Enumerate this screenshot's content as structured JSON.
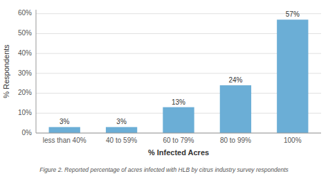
{
  "chart_data": {
    "type": "bar",
    "categories": [
      "less than 40%",
      "40 to 59%",
      "60 to 79%",
      "80 to 99%",
      "100%"
    ],
    "values": [
      3,
      3,
      13,
      24,
      57
    ],
    "value_labels": [
      "3%",
      "3%",
      "13%",
      "24%",
      "57%"
    ],
    "data_labels": true,
    "color": "#6baed6",
    "xlabel": "% Infected Acres",
    "ylabel": "% Respondents",
    "caption": "Figure 2.  Reported percentage of acres infected with HLB by citrus industry survey respondents",
    "ylim": [
      0,
      62
    ],
    "yticks": [
      {
        "value": 0,
        "label": "0%"
      },
      {
        "value": 10,
        "label": "10%"
      },
      {
        "value": 20,
        "label": "20%"
      },
      {
        "value": 30,
        "label": "30%"
      },
      {
        "value": 40,
        "label": "40%"
      },
      {
        "value": 50,
        "label": "50%"
      },
      {
        "value": 60,
        "label": "60%"
      }
    ],
    "grid": true
  }
}
